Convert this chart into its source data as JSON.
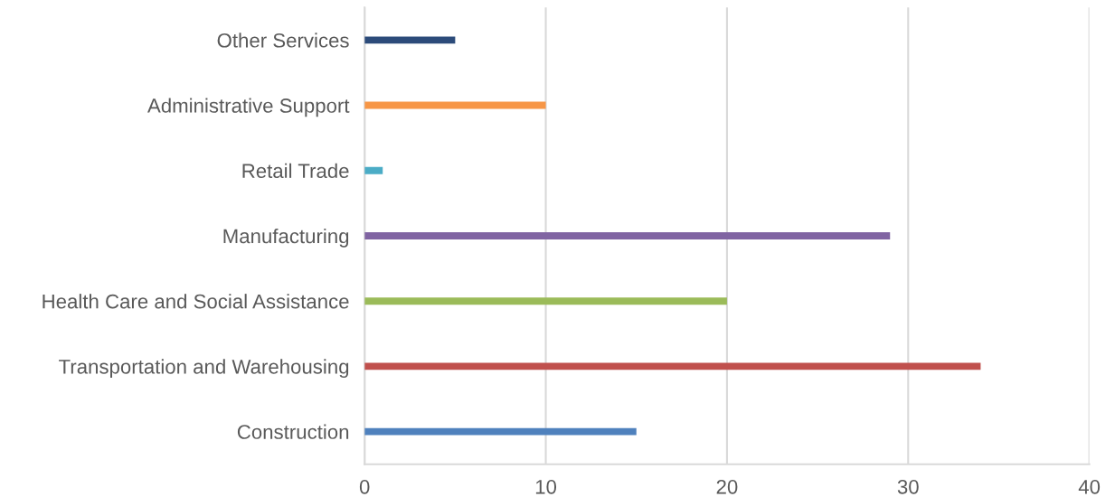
{
  "chart_data": {
    "type": "bar",
    "orientation": "horizontal",
    "categories": [
      "Other Services",
      "Administrative Support",
      "Retail Trade",
      "Manufacturing",
      "Health Care and Social Assistance",
      "Transportation and Warehousing",
      "Construction"
    ],
    "values": [
      5,
      10,
      1,
      29,
      20,
      34,
      15
    ],
    "colors": [
      "#2c4b7a",
      "#f79646",
      "#4bacc6",
      "#8064a2",
      "#9bbb59",
      "#c0504d",
      "#4f81bd"
    ],
    "xlim": [
      0,
      40
    ],
    "xticks": [
      0,
      10,
      20,
      30,
      40
    ],
    "grid": "x"
  }
}
